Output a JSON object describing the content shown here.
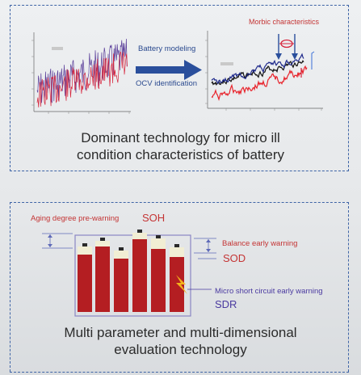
{
  "top": {
    "label_modeling": "Battery modeling",
    "label_ocv": "OCV identification",
    "label_morbic": "Morbic characteristics",
    "caption_line1": "Dominant technology for micro ill",
    "caption_line2": "condition characteristics of battery"
  },
  "bottom": {
    "aging_label": "Aging degree pre-warning",
    "soh": "SOH",
    "balance_label": "Balance early warning",
    "sod": "SOD",
    "micro_label": "Micro short circuit early warning",
    "sdr": "SDR",
    "caption_line1": "Multi parameter and multi-dimensional",
    "caption_line2": "evaluation technology"
  },
  "colors": {
    "frame": "#3e64a6",
    "arrow": "#2a4f9c",
    "cell_red": "#b41e22",
    "cell_cream": "#f1eed4",
    "label_red": "#c43434",
    "label_purple": "#4a3aa0"
  }
}
